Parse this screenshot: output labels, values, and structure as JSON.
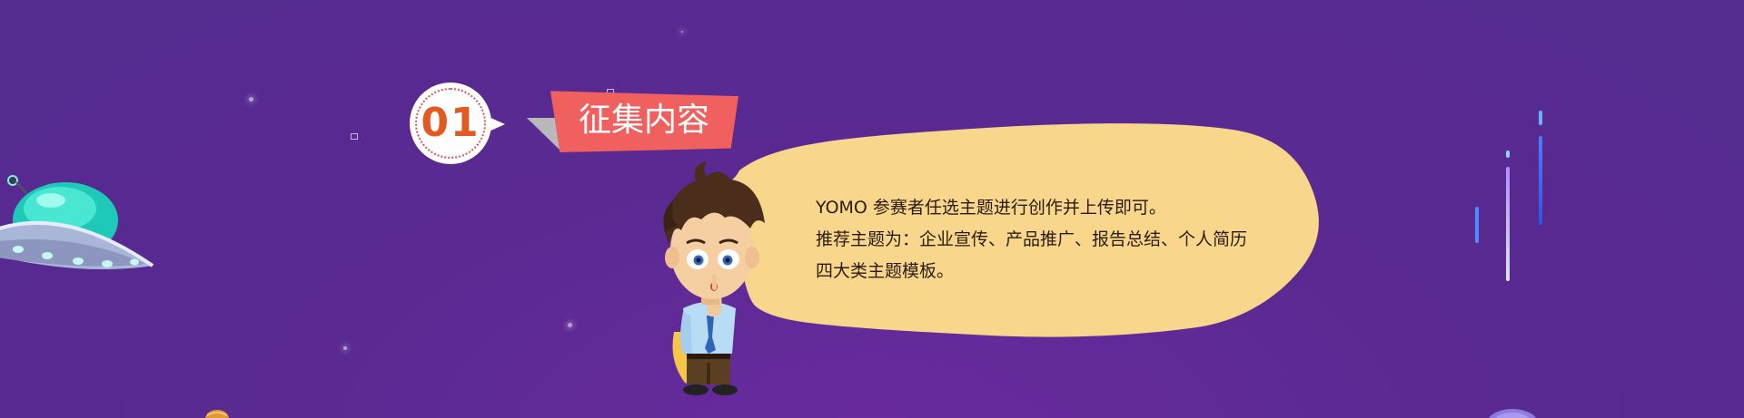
{
  "section": {
    "number": "01",
    "title": "征集内容"
  },
  "bubble": {
    "lines": [
      "YOMO 参赛者任选主题进行创作并上传即可。",
      "推荐主题为：企业宣传、产品推广、报告总结、个人简历",
      "四大类主题模板。"
    ]
  },
  "colors": {
    "background": "#5a2a92",
    "badge_number": "#e25a22",
    "ribbon": "#f0605f",
    "bubble": "#f8d78c"
  }
}
